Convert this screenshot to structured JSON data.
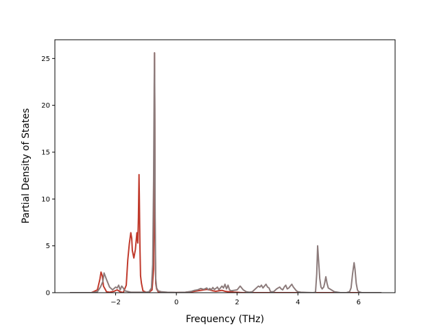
{
  "chart_data": {
    "type": "line",
    "title": "",
    "xlabel": "Frequency (THz)",
    "ylabel": "Partial Density of States",
    "xlim": [
      -4.0,
      7.2
    ],
    "ylim": [
      0,
      27
    ],
    "xticks": [
      -2,
      0,
      2,
      4,
      6
    ],
    "xtick_labels": [
      "−2",
      "0",
      "2",
      "4",
      "6"
    ],
    "yticks": [
      0,
      5,
      10,
      15,
      20,
      25
    ],
    "ytick_labels": [
      "0",
      "5",
      "10",
      "15",
      "20",
      "25"
    ],
    "grid": false,
    "legend": "none",
    "series": [
      {
        "color": "#c0392b",
        "x": [
          -3.5,
          -2.8,
          -2.6,
          -2.52,
          -2.48,
          -2.44,
          -2.4,
          -2.3,
          -2.2,
          -2.05,
          -1.95,
          -1.85,
          -1.75,
          -1.65,
          -1.6,
          -1.55,
          -1.5,
          -1.47,
          -1.45,
          -1.4,
          -1.35,
          -1.3,
          -1.27,
          -1.25,
          -1.23,
          -1.22,
          -1.2,
          -1.18,
          -1.15,
          -1.1,
          -1.0,
          -0.9,
          -0.8,
          -0.75,
          -0.73,
          -0.72,
          -0.71,
          -0.7,
          -0.68,
          -0.65,
          -0.6,
          -0.5,
          -0.3,
          0.0,
          0.3,
          0.5,
          0.6,
          0.7,
          0.8,
          0.9,
          1.0,
          1.1,
          1.2,
          1.3,
          1.4,
          1.5,
          1.6,
          1.7,
          1.8,
          1.9,
          2.0,
          2.1,
          2.2,
          2.5,
          3.0,
          3.5,
          4.0,
          4.6,
          5.0,
          5.5,
          5.9,
          6.2,
          6.75
        ],
        "y": [
          0,
          0,
          0.3,
          1.4,
          2.2,
          1.8,
          0.7,
          0.1,
          0.05,
          0.15,
          0.3,
          0.1,
          0.0,
          0.8,
          3.5,
          5.2,
          6.4,
          5.8,
          4.5,
          3.7,
          4.6,
          6.4,
          5.3,
          8.0,
          12.6,
          10.5,
          5.0,
          1.8,
          1.0,
          0.2,
          0.05,
          0.05,
          0.3,
          2.5,
          15.0,
          25.6,
          18.0,
          6.0,
          1.0,
          0.4,
          0.1,
          0.05,
          0.02,
          0.01,
          0.05,
          0.1,
          0.15,
          0.2,
          0.25,
          0.3,
          0.35,
          0.3,
          0.2,
          0.15,
          0.2,
          0.25,
          0.15,
          0.1,
          0.1,
          0.05,
          0.05,
          0.02,
          0.0,
          0.0,
          0.0,
          0.0,
          0.0,
          0.0,
          0.0,
          0.0,
          0.0,
          0.0,
          0.0
        ]
      },
      {
        "color": "#8c7b7b",
        "x": [
          -3.5,
          -2.8,
          -2.6,
          -2.5,
          -2.42,
          -2.38,
          -2.3,
          -2.2,
          -2.1,
          -2.0,
          -1.95,
          -1.9,
          -1.85,
          -1.8,
          -1.75,
          -1.7,
          -1.5,
          -1.0,
          -0.9,
          -0.82,
          -0.78,
          -0.75,
          -0.73,
          -0.72,
          -0.71,
          -0.7,
          -0.68,
          -0.65,
          -0.6,
          -0.5,
          -0.3,
          0.0,
          0.3,
          0.5,
          0.6,
          0.7,
          0.8,
          0.9,
          1.0,
          1.05,
          1.1,
          1.15,
          1.2,
          1.25,
          1.3,
          1.35,
          1.4,
          1.45,
          1.5,
          1.55,
          1.6,
          1.65,
          1.7,
          1.75,
          1.8,
          1.9,
          2.0,
          2.05,
          2.1,
          2.15,
          2.2,
          2.3,
          2.4,
          2.5,
          2.6,
          2.7,
          2.75,
          2.8,
          2.85,
          2.9,
          2.95,
          3.0,
          3.05,
          3.1,
          3.2,
          3.3,
          3.4,
          3.45,
          3.5,
          3.55,
          3.6,
          3.65,
          3.7,
          3.75,
          3.8,
          3.85,
          3.9,
          3.95,
          4.0,
          4.1,
          4.3,
          4.5,
          4.58,
          4.62,
          4.65,
          4.68,
          4.72,
          4.76,
          4.8,
          4.85,
          4.88,
          4.92,
          4.96,
          5.0,
          5.05,
          5.1,
          5.2,
          5.4,
          5.6,
          5.7,
          5.75,
          5.8,
          5.85,
          5.88,
          5.92,
          5.96,
          6.0,
          6.1,
          6.3,
          6.75
        ],
        "y": [
          0,
          0,
          0.1,
          0.6,
          1.2,
          2.1,
          1.4,
          0.6,
          0.3,
          0.6,
          0.5,
          0.8,
          0.3,
          0.7,
          0.5,
          0.2,
          0.05,
          0.05,
          0.1,
          0.5,
          3.0,
          12.0,
          22.0,
          25.6,
          20.0,
          8.0,
          1.5,
          0.5,
          0.2,
          0.1,
          0.05,
          0.02,
          0.05,
          0.15,
          0.25,
          0.3,
          0.45,
          0.35,
          0.5,
          0.3,
          0.45,
          0.3,
          0.55,
          0.35,
          0.45,
          0.6,
          0.3,
          0.5,
          0.7,
          0.5,
          0.9,
          0.4,
          0.8,
          0.3,
          0.2,
          0.25,
          0.3,
          0.5,
          0.7,
          0.5,
          0.3,
          0.1,
          0.05,
          0.1,
          0.4,
          0.7,
          0.6,
          0.8,
          0.5,
          0.7,
          0.9,
          0.6,
          0.5,
          0.1,
          0.1,
          0.4,
          0.6,
          0.4,
          0.3,
          0.6,
          0.8,
          0.4,
          0.5,
          0.7,
          0.9,
          0.6,
          0.4,
          0.2,
          0.1,
          0.05,
          0.02,
          0.0,
          0.05,
          2.0,
          5.0,
          3.5,
          1.5,
          0.6,
          0.4,
          0.6,
          1.0,
          1.7,
          1.0,
          0.5,
          0.4,
          0.3,
          0.1,
          0.0,
          0.0,
          0.1,
          0.5,
          2.0,
          3.2,
          2.5,
          1.0,
          0.3,
          0.1,
          0.0,
          0.0,
          0.0
        ]
      }
    ]
  }
}
